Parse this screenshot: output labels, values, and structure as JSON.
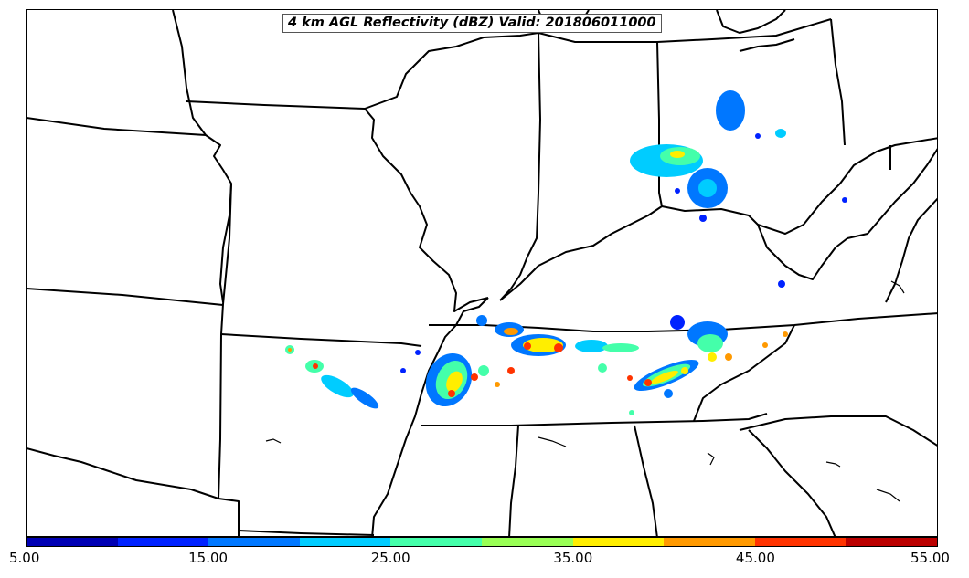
{
  "title": "4 km AGL Reflectivity (dBZ) Valid: 201806011000",
  "colorbar": {
    "colors": [
      "#0000b4",
      "#0022ff",
      "#0077ff",
      "#00ccff",
      "#44ffaa",
      "#99ff55",
      "#ffee00",
      "#ff9900",
      "#ff3300",
      "#bb0000"
    ],
    "tick_labels": [
      "5.00",
      "15.00",
      "25.00",
      "35.00",
      "45.00",
      "55.00"
    ],
    "min": 5,
    "max": 55
  }
}
